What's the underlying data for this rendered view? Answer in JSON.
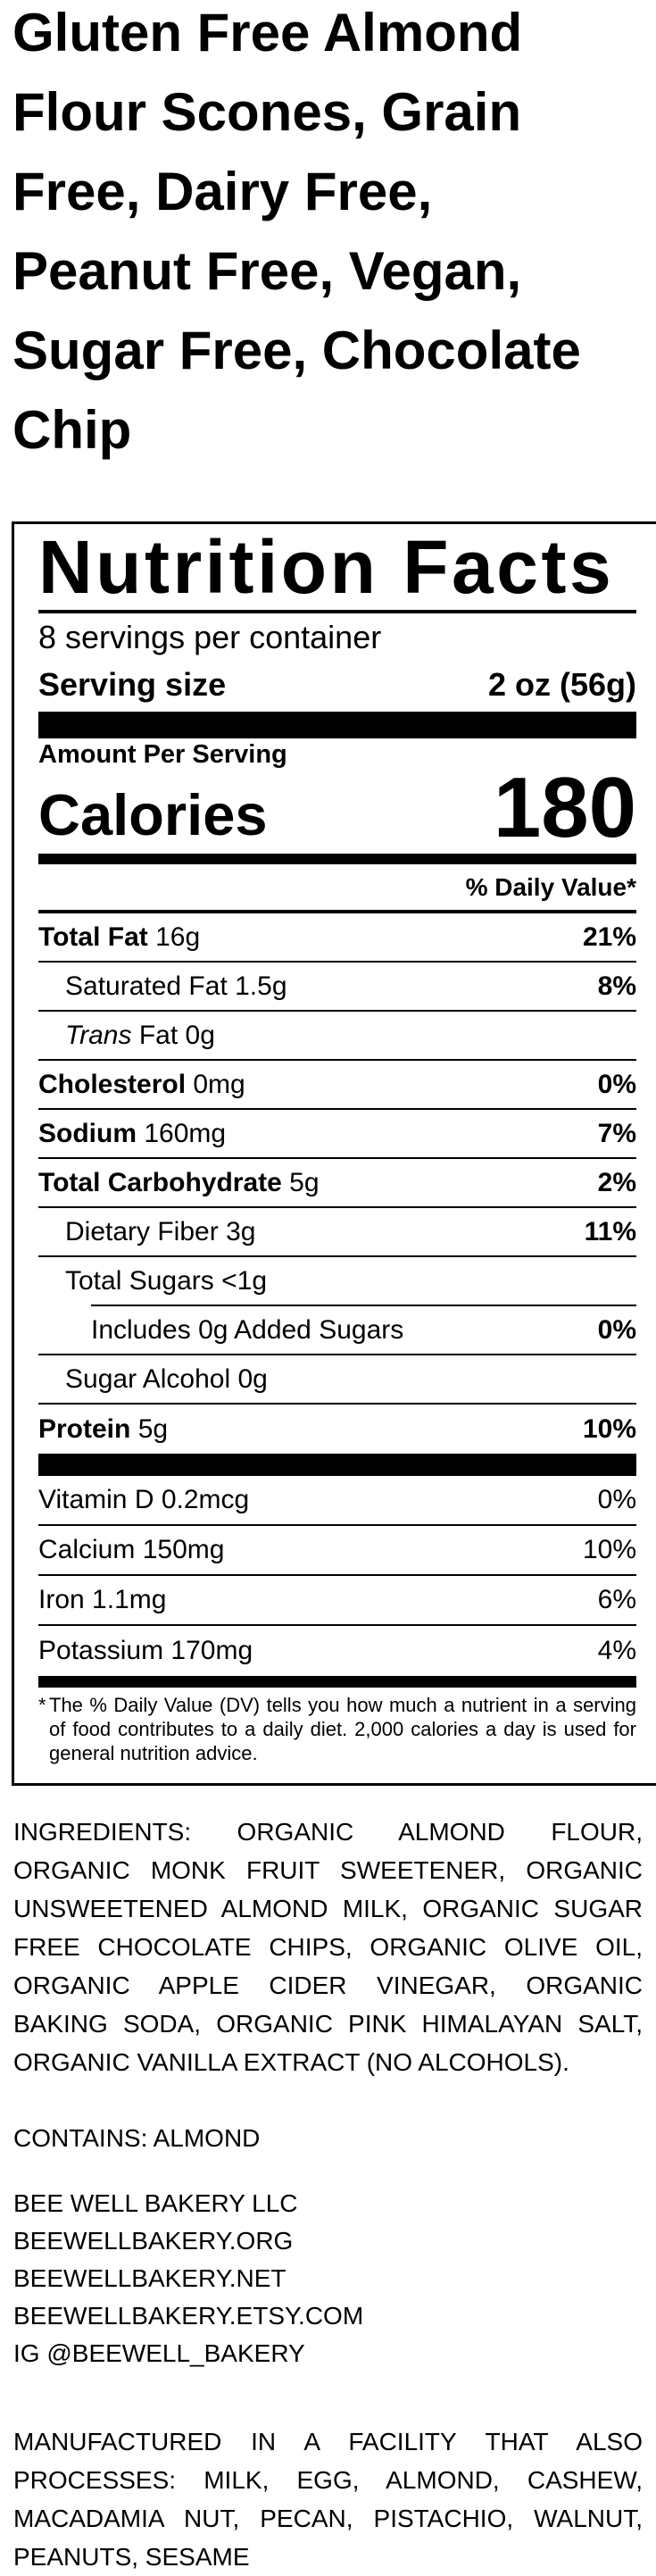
{
  "product_title_lines": [
    "Gluten Free Almond",
    "Flour Scones, Grain",
    "Free, Dairy Free,",
    "Peanut Free, Vegan,",
    "Sugar Free, Chocolate",
    "Chip"
  ],
  "label": {
    "heading": "Nutrition Facts",
    "servings_per_container": "8 servings per container",
    "serving_size_label": "Serving size",
    "serving_size_value": "2 oz (56g)",
    "amount_per_serving": "Amount Per Serving",
    "calories_label": "Calories",
    "calories_value": "180",
    "daily_value_header": "% Daily Value*",
    "nutrients": [
      {
        "name": "Total Fat",
        "amount": "16g",
        "dv": "21%"
      },
      {
        "name": "Saturated Fat",
        "amount": "1.5g",
        "dv": "8%"
      },
      {
        "name": "Trans",
        "name_rest": "Fat",
        "amount": "0g",
        "dv": ""
      },
      {
        "name": "Cholesterol",
        "amount": "0mg",
        "dv": "0%"
      },
      {
        "name": "Sodium",
        "amount": "160mg",
        "dv": "7%"
      },
      {
        "name": "Total Carbohydrate",
        "amount": "5g",
        "dv": "2%"
      },
      {
        "name": "Dietary Fiber",
        "amount": "3g",
        "dv": "11%"
      },
      {
        "name": "Total Sugars",
        "amount": "<1g",
        "dv": ""
      },
      {
        "name": "Includes 0g Added Sugars",
        "amount": "",
        "dv": "0%"
      },
      {
        "name": "Sugar Alcohol",
        "amount": "0g",
        "dv": ""
      },
      {
        "name": "Protein",
        "amount": "5g",
        "dv": "10%"
      }
    ],
    "vitamins": [
      {
        "name": "Vitamin D",
        "amount": "0.2mcg",
        "dv": "0%"
      },
      {
        "name": "Calcium",
        "amount": "150mg",
        "dv": "10%"
      },
      {
        "name": "Iron",
        "amount": "1.1mg",
        "dv": "6%"
      },
      {
        "name": "Potassium",
        "amount": "170mg",
        "dv": "4%"
      }
    ],
    "footnote_star": "*",
    "footnote": "The % Daily Value (DV) tells you how much a nutrient in a serving of food contributes to a daily diet. 2,000 calories a day is used for general nutrition advice."
  },
  "ingredients": "INGREDIENTS: ORGANIC ALMOND FLOUR, ORGANIC MONK FRUIT SWEETENER, ORGANIC UNSWEETENED ALMOND MILK, ORGANIC SUGAR FREE CHOCOLATE CHIPS, ORGANIC OLIVE OIL, ORGANIC APPLE CIDER VINEGAR, ORGANIC BAKING SODA, ORGANIC PINK HIMALAYAN SALT, ORGANIC VANILLA EXTRACT (NO ALCOHOLS).",
  "contains": "CONTAINS: ALMOND",
  "company_lines": [
    "BEE WELL BAKERY LLC",
    "BEEWELLBAKERY.ORG",
    "BEEWELLBAKERY.NET",
    "BEEWELLBAKERY.ETSY.COM",
    "IG @BEEWELL_BAKERY"
  ],
  "facility_notice": "MANUFACTURED IN A FACILITY THAT ALSO PROCESSES: MILK, EGG, ALMOND, CASHEW, MACADAMIA NUT, PECAN, PISTACHIO, WALNUT, PEANUTS, SESAME"
}
